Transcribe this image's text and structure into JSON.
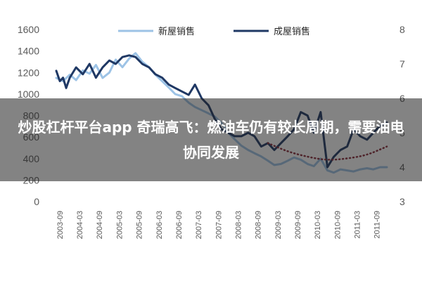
{
  "banner": {
    "headline": "炒股杠杆平台app 奇瑞高飞：燃油车仍有较长周期，需要油电协同发展"
  },
  "colors": {
    "new_home_sales": "#9DC3E6",
    "existing_home_sales": "#1F3864",
    "trend_line": "#8B2C3A",
    "axis_text": "#595959"
  },
  "chart_data": {
    "type": "line",
    "legend_placement": "top-center",
    "grid": false,
    "y_left": {
      "range": [
        0,
        1600
      ],
      "ticks": [
        "0",
        "200",
        "400",
        "600",
        "800",
        "1000",
        "1200",
        "1400",
        "1600"
      ]
    },
    "y_right": {
      "range": [
        3,
        8
      ],
      "ticks": [
        "3",
        "4",
        "5",
        "6",
        "7",
        "8"
      ]
    },
    "x_range": [
      2003.58,
      2011.92
    ],
    "x_ticks": [
      "2003-09",
      "2004-03",
      "2004-09",
      "2005-03",
      "2005-09",
      "2006-03",
      "2006-09",
      "2007-03",
      "2007-09",
      "2008-03",
      "2008-09",
      "2009-03",
      "2009-09",
      "2010-03",
      "2010-09",
      "2011-03",
      "2011-09"
    ],
    "series": [
      {
        "name": "新屋销售",
        "axis": "left",
        "style": "line",
        "points": [
          [
            2003.58,
            1150
          ],
          [
            2003.75,
            1120
          ],
          [
            2003.92,
            1180
          ],
          [
            2004.08,
            1130
          ],
          [
            2004.25,
            1220
          ],
          [
            2004.42,
            1190
          ],
          [
            2004.58,
            1270
          ],
          [
            2004.75,
            1150
          ],
          [
            2004.92,
            1200
          ],
          [
            2005.08,
            1320
          ],
          [
            2005.25,
            1250
          ],
          [
            2005.42,
            1330
          ],
          [
            2005.58,
            1380
          ],
          [
            2005.75,
            1300
          ],
          [
            2005.92,
            1250
          ],
          [
            2006.08,
            1180
          ],
          [
            2006.25,
            1120
          ],
          [
            2006.42,
            1060
          ],
          [
            2006.58,
            1000
          ],
          [
            2006.75,
            980
          ],
          [
            2006.92,
            920
          ],
          [
            2007.08,
            880
          ],
          [
            2007.25,
            850
          ],
          [
            2007.42,
            820
          ],
          [
            2007.58,
            790
          ],
          [
            2007.75,
            730
          ],
          [
            2007.92,
            640
          ],
          [
            2008.08,
            580
          ],
          [
            2008.25,
            520
          ],
          [
            2008.42,
            480
          ],
          [
            2008.58,
            450
          ],
          [
            2008.75,
            420
          ],
          [
            2008.92,
            380
          ],
          [
            2009.08,
            340
          ],
          [
            2009.25,
            350
          ],
          [
            2009.42,
            380
          ],
          [
            2009.58,
            410
          ],
          [
            2009.75,
            390
          ],
          [
            2009.92,
            350
          ],
          [
            2010.08,
            330
          ],
          [
            2010.25,
            400
          ],
          [
            2010.42,
            290
          ],
          [
            2010.58,
            270
          ],
          [
            2010.75,
            300
          ],
          [
            2010.92,
            290
          ],
          [
            2011.08,
            280
          ],
          [
            2011.25,
            300
          ],
          [
            2011.42,
            310
          ],
          [
            2011.58,
            300
          ],
          [
            2011.75,
            320
          ],
          [
            2011.92,
            320
          ]
        ]
      },
      {
        "name": "成屋销售",
        "axis": "right",
        "style": "line",
        "points": [
          [
            2003.58,
            6.8
          ],
          [
            2003.67,
            6.5
          ],
          [
            2003.75,
            6.6
          ],
          [
            2003.83,
            6.3
          ],
          [
            2003.92,
            6.6
          ],
          [
            2004.08,
            6.9
          ],
          [
            2004.25,
            6.7
          ],
          [
            2004.42,
            7.0
          ],
          [
            2004.58,
            6.6
          ],
          [
            2004.75,
            6.9
          ],
          [
            2004.92,
            7.1
          ],
          [
            2005.08,
            7.0
          ],
          [
            2005.25,
            7.2
          ],
          [
            2005.42,
            7.25
          ],
          [
            2005.58,
            7.2
          ],
          [
            2005.75,
            7.0
          ],
          [
            2005.92,
            6.9
          ],
          [
            2006.08,
            6.7
          ],
          [
            2006.25,
            6.6
          ],
          [
            2006.42,
            6.4
          ],
          [
            2006.58,
            6.3
          ],
          [
            2006.75,
            6.2
          ],
          [
            2006.92,
            6.1
          ],
          [
            2007.08,
            6.4
          ],
          [
            2007.25,
            6.0
          ],
          [
            2007.42,
            5.8
          ],
          [
            2007.58,
            5.4
          ],
          [
            2007.75,
            5.1
          ],
          [
            2007.92,
            5.0
          ],
          [
            2008.08,
            4.9
          ],
          [
            2008.25,
            4.9
          ],
          [
            2008.42,
            5.0
          ],
          [
            2008.58,
            4.9
          ],
          [
            2008.75,
            4.6
          ],
          [
            2008.92,
            4.7
          ],
          [
            2009.08,
            4.5
          ],
          [
            2009.25,
            4.7
          ],
          [
            2009.42,
            4.9
          ],
          [
            2009.58,
            5.1
          ],
          [
            2009.75,
            5.6
          ],
          [
            2009.92,
            5.5
          ],
          [
            2010.08,
            5.0
          ],
          [
            2010.25,
            5.6
          ],
          [
            2010.42,
            4.0
          ],
          [
            2010.58,
            4.3
          ],
          [
            2010.75,
            4.5
          ],
          [
            2010.92,
            4.6
          ],
          [
            2011.08,
            5.1
          ],
          [
            2011.25,
            4.9
          ],
          [
            2011.42,
            4.8
          ],
          [
            2011.58,
            5.0
          ],
          [
            2011.75,
            5.2
          ],
          [
            2011.92,
            5.3
          ]
        ]
      },
      {
        "name": "",
        "axis": "right",
        "style": "dotted",
        "points": [
          [
            2008.92,
            4.7
          ],
          [
            2009.42,
            4.45
          ],
          [
            2009.92,
            4.3
          ],
          [
            2010.42,
            4.2
          ],
          [
            2010.92,
            4.25
          ],
          [
            2011.42,
            4.35
          ],
          [
            2011.92,
            4.6
          ]
        ]
      }
    ]
  }
}
